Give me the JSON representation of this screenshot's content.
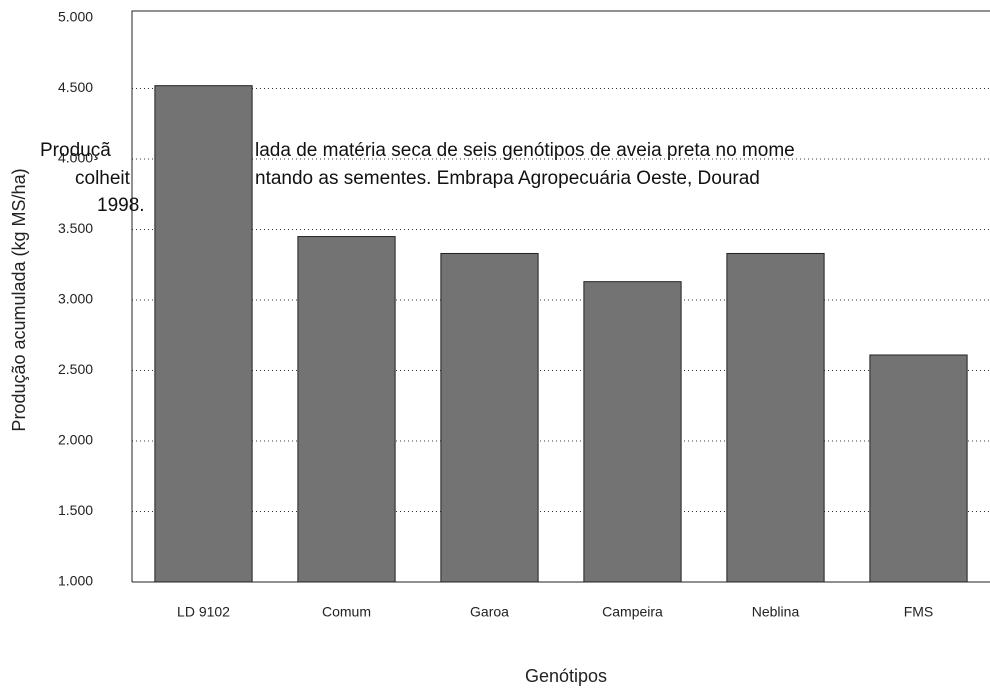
{
  "chart_data": {
    "type": "bar",
    "caption": [
      "Produçã",
      "lada de matéria seca de seis genótipos de aveia preta no mome",
      "colheit",
      "ntando as sementes. Embrapa Agropecuária Oeste, Dourad",
      "1998."
    ],
    "y_label": "Produção acumulada (kg MS/ha)",
    "x_label": "Genótipos",
    "categories": [
      "LD 9102",
      "Comum",
      "Garoa",
      "Campeira",
      "Neblina",
      "FMS"
    ],
    "values": [
      4520,
      3450,
      3330,
      3130,
      3330,
      2610
    ],
    "color": "#737373",
    "ylim": [
      1000,
      5000
    ],
    "yticks": [
      {
        "value": 1000,
        "label": "1.000"
      },
      {
        "value": 1500,
        "label": "1.500"
      },
      {
        "value": 2000,
        "label": "2.000"
      },
      {
        "value": 2500,
        "label": "2.500"
      },
      {
        "value": 3000,
        "label": "3.000"
      },
      {
        "value": 3500,
        "label": "3.500"
      },
      {
        "value": 4000,
        "label": "4.000"
      },
      {
        "value": 4500,
        "label": "4.500"
      },
      {
        "value": 5000,
        "label": "5.000"
      }
    ],
    "grid": true
  }
}
